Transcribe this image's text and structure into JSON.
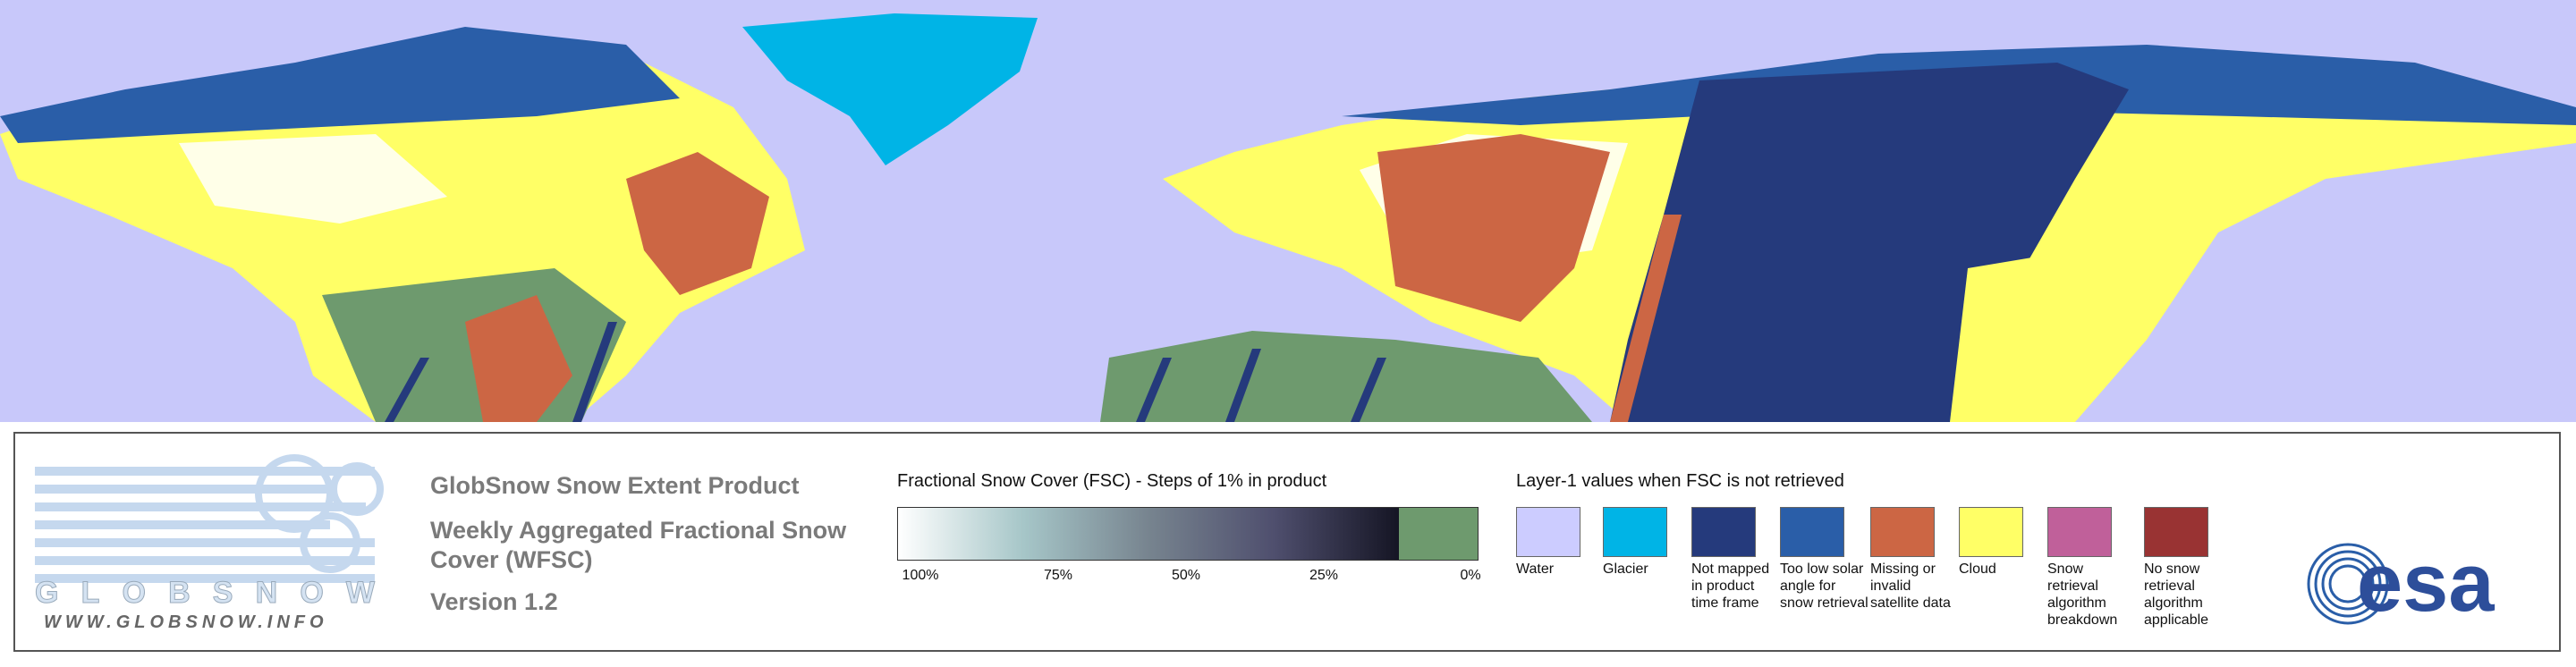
{
  "logo": {
    "name": "GLOBSNOW",
    "url": "WWW.GLOBSNOW.INFO"
  },
  "product": {
    "title": "GlobSnow Snow Extent Product",
    "subtitle": "Weekly Aggregated Fractional Snow Cover (WFSC)",
    "version": "Version 1.2"
  },
  "fsc_scale": {
    "title": "Fractional Snow Cover (FSC) - Steps of 1% in product",
    "labels": [
      "100%",
      "75%",
      "50%",
      "25%",
      "0%"
    ],
    "no_snow_color": "#6e9a6e"
  },
  "layer1": {
    "title": "Layer-1 values when FSC is not retrieved",
    "items": [
      {
        "label": "Water",
        "color": "#ccccff"
      },
      {
        "label": "Glacier",
        "color": "#00b4e6"
      },
      {
        "label": "Not mapped in product time frame",
        "color": "#253a7c"
      },
      {
        "label": "Too low solar angle for snow retrieval",
        "color": "#2a5ea8"
      },
      {
        "label": "Missing or invalid satellite data",
        "color": "#cc6644"
      },
      {
        "label": "Cloud",
        "color": "#ffff66"
      },
      {
        "label": "Snow retrieval algorithm breakdown",
        "color": "#c0609a"
      },
      {
        "label": "No snow retrieval algorithm applicable",
        "color": "#993333"
      }
    ]
  },
  "esa_logo": "esa"
}
